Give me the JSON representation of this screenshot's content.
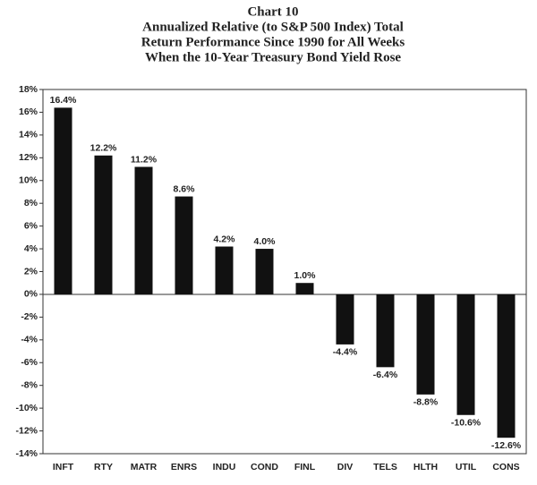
{
  "chart_data": {
    "type": "bar",
    "title": "Chart 10",
    "subtitle": [
      "Annualized Relative (to S&P 500 Index) Total",
      "Return Performance Since 1990 for All Weeks",
      "When the 10-Year Treasury Bond Yield Rose"
    ],
    "categories": [
      "INFT",
      "RTY",
      "MATR",
      "ENRS",
      "INDU",
      "COND",
      "FINL",
      "DIV",
      "TELS",
      "HLTH",
      "UTIL",
      "CONS"
    ],
    "values": [
      16.4,
      12.2,
      11.2,
      8.6,
      4.2,
      4.0,
      1.0,
      -4.4,
      -6.4,
      -8.8,
      -10.6,
      -12.6
    ],
    "value_labels": [
      "16.4%",
      "12.2%",
      "11.2%",
      "8.6%",
      "4.2%",
      "4.0%",
      "1.0%",
      "-4.4%",
      "-6.4%",
      "-8.8%",
      "-10.6%",
      "-12.6%"
    ],
    "color": "#111111",
    "ylim": [
      -14,
      18
    ],
    "yticks": [
      {
        "value": -14,
        "label": "-14%"
      },
      {
        "value": -12,
        "label": "-12%"
      },
      {
        "value": -10,
        "label": "-10%"
      },
      {
        "value": -8,
        "label": "-8%"
      },
      {
        "value": -6,
        "label": "-6%"
      },
      {
        "value": -4,
        "label": "-4%"
      },
      {
        "value": -2,
        "label": "-2%"
      },
      {
        "value": 0,
        "label": "0%"
      },
      {
        "value": 2,
        "label": "2%"
      },
      {
        "value": 4,
        "label": "4%"
      },
      {
        "value": 6,
        "label": "6%"
      },
      {
        "value": 8,
        "label": "8%"
      },
      {
        "value": 10,
        "label": "10%"
      },
      {
        "value": 12,
        "label": "12%"
      },
      {
        "value": 14,
        "label": "14%"
      },
      {
        "value": 16,
        "label": "16%"
      },
      {
        "value": 18,
        "label": "18%"
      }
    ],
    "grid": false
  }
}
